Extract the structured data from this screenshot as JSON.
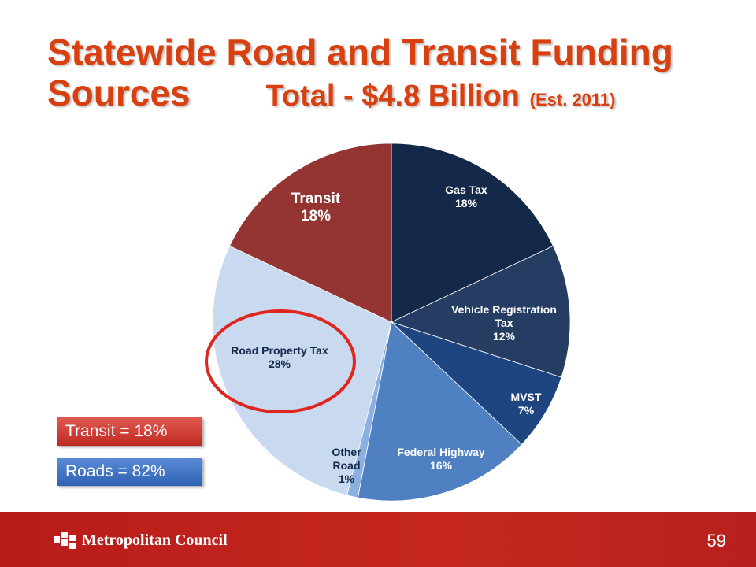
{
  "title": {
    "line1": "Statewide Road and Transit Funding",
    "line2": "Sources",
    "total": "Total - $4.8 Billion",
    "est": "(Est. 2011)"
  },
  "legend": {
    "transit": "Transit = 18%",
    "roads": "Roads = 82%"
  },
  "footer": {
    "org": "Metropolitan Council",
    "page": "59"
  },
  "colors": {
    "title": "#d9400f",
    "highlight_circle": "#e0261e"
  },
  "chart_data": {
    "type": "pie",
    "title": "",
    "slices": [
      {
        "label_lines": [
          "Gas Tax"
        ],
        "pct": "18%",
        "value": 18,
        "color": "#14284a"
      },
      {
        "label_lines": [
          "Vehicle Registration",
          "Tax"
        ],
        "pct": "12%",
        "value": 12,
        "color": "#253d63"
      },
      {
        "label_lines": [
          "MVST"
        ],
        "pct": "7%",
        "value": 7,
        "color": "#1f4580"
      },
      {
        "label_lines": [
          "Federal Highway"
        ],
        "pct": "16%",
        "value": 16,
        "color": "#4f80c2"
      },
      {
        "label_lines": [
          "Other",
          "Road"
        ],
        "pct": "1%",
        "value": 1,
        "color": "#8cb0e0"
      },
      {
        "label_lines": [
          "Road Property Tax"
        ],
        "pct": "28%",
        "value": 28,
        "color": "#c8d9f0"
      },
      {
        "label_lines": [
          "Transit"
        ],
        "pct": "18%",
        "value": 18,
        "color": "#943534"
      }
    ],
    "highlighted_slice": "Road Property Tax"
  }
}
